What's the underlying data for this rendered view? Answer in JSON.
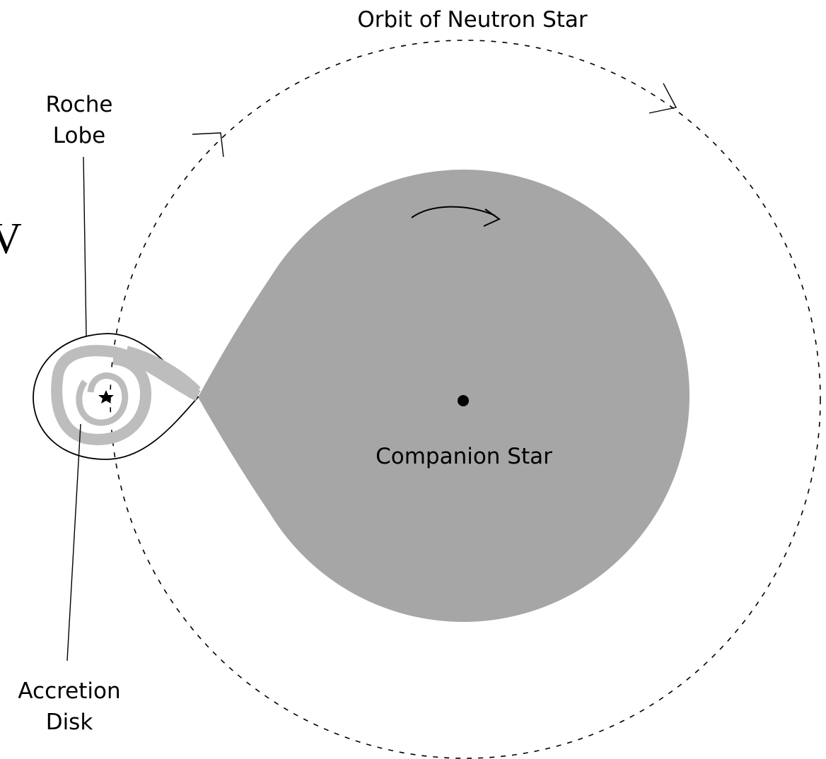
{
  "labels": {
    "orbit": "Orbit of Neutron Star",
    "roche_lobe": [
      "Roche",
      "Lobe"
    ],
    "companion": "Companion Star",
    "accretion_disk": [
      "Accretion",
      "Disk"
    ],
    "edge_letter": "V"
  }
}
